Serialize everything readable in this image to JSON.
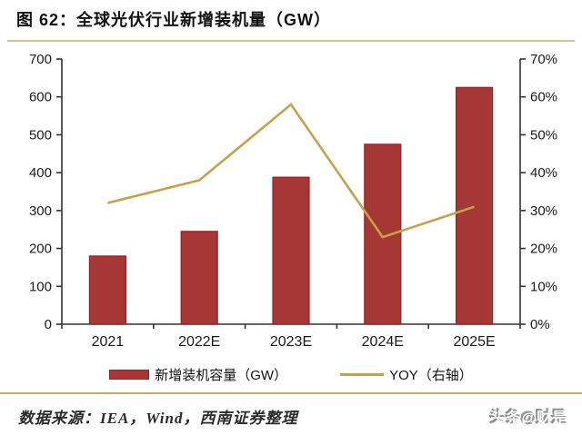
{
  "header": {
    "title": "图 62：全球光伏行业新增装机量（GW）"
  },
  "chart_data": {
    "type": "bar",
    "title": "全球光伏行业新增装机量（GW）",
    "categories": [
      "2021",
      "2022E",
      "2023E",
      "2024E",
      "2025E"
    ],
    "series": [
      {
        "name": "新增装机容量（GW）",
        "type": "bar",
        "axis": "left",
        "values": [
          180,
          245,
          388,
          475,
          625
        ],
        "color": "#a53734",
        "border_color": "#9e1f24"
      },
      {
        "name": "YOY（右轴）",
        "type": "line",
        "axis": "right",
        "values": [
          32,
          38,
          58,
          23,
          31
        ],
        "unit": "%",
        "color": "#c8a04a"
      }
    ],
    "left_axis": {
      "min": 0,
      "max": 700,
      "step": 100,
      "ticks": [
        "0",
        "100",
        "200",
        "300",
        "400",
        "500",
        "600",
        "700"
      ]
    },
    "right_axis": {
      "min": 0,
      "max": 70,
      "step": 10,
      "ticks": [
        "0%",
        "10%",
        "20%",
        "30%",
        "40%",
        "50%",
        "60%",
        "70%"
      ]
    },
    "grid": "off",
    "legend_position": "bottom"
  },
  "legend": {
    "items": [
      {
        "label": "新增装机容量（GW）",
        "swatch": "bar",
        "color": "#a53734",
        "border_color": "#9e1f24"
      },
      {
        "label": "YOY（右轴）",
        "swatch": "line",
        "color": "#c8a04a"
      }
    ]
  },
  "footer": {
    "source": "数据来源：IEA，Wind，西南证券整理",
    "watermark": "头条@财是"
  },
  "colors": {
    "bar": "#a53734",
    "bar_border": "#9e1f24",
    "line": "#c8a04a",
    "axis": "#333333",
    "label": "#1a1a1a",
    "title_rule": "#d8c28e",
    "footer_rule": "#c9a96b"
  }
}
